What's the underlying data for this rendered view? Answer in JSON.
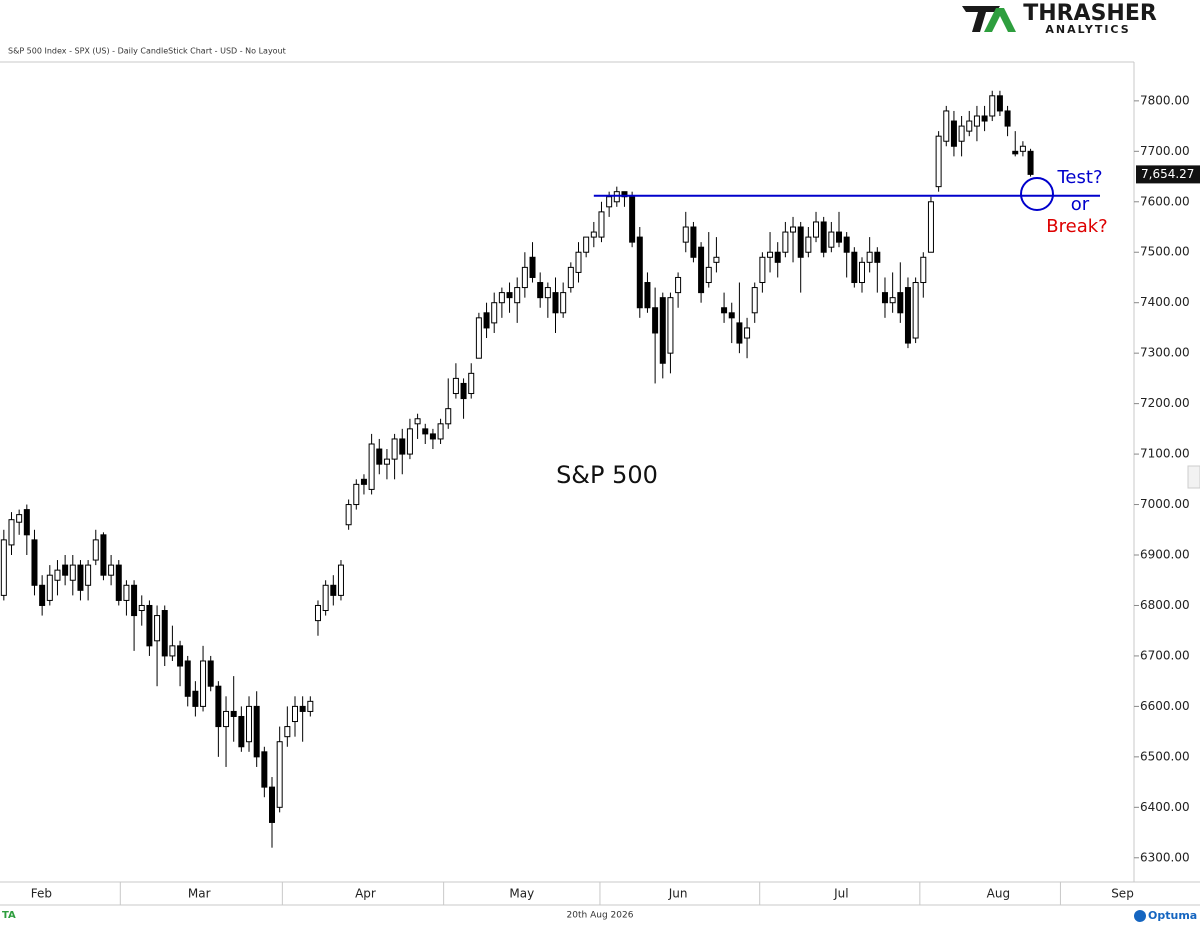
{
  "chart_data": {
    "type": "candlestick",
    "title": "S&P 500 Index - SPX (US) - Daily CandleStick Chart - USD - No Layout",
    "annotation": "S&P 500",
    "brand": "THRASHER",
    "brand_sub": "ANALYTICS",
    "footer_date": "20th Aug 2026",
    "footer_brand": "Optuma",
    "last_price": 7654.27,
    "last_price_label": "7,654.27",
    "level_line": {
      "value": 7612,
      "color": "#0000cc"
    },
    "question_1": "Test?",
    "question_or": "or",
    "question_2": "Break?",
    "ylim": [
      6252,
      7877
    ],
    "xlim": [
      -0.5,
      147.5
    ],
    "yticks": [
      {
        "value": 6300,
        "label": "6300.00"
      },
      {
        "value": 6400,
        "label": "6400.00"
      },
      {
        "value": 6500,
        "label": "6500.00"
      },
      {
        "value": 6600,
        "label": "6600.00"
      },
      {
        "value": 6700,
        "label": "6700.00"
      },
      {
        "value": 6800,
        "label": "6800.00"
      },
      {
        "value": 6900,
        "label": "6900.00"
      },
      {
        "value": 7000,
        "label": "7000.00"
      },
      {
        "value": 7100,
        "label": "7100.00"
      },
      {
        "value": 7200,
        "label": "7200.00"
      },
      {
        "value": 7300,
        "label": "7300.00"
      },
      {
        "value": 7400,
        "label": "7400.00"
      },
      {
        "value": 7500,
        "label": "7500.00"
      },
      {
        "value": 7600,
        "label": "7600.00"
      },
      {
        "value": 7700,
        "label": "7700.00"
      },
      {
        "value": 7800,
        "label": "7800.00"
      }
    ],
    "xticks": [
      {
        "value": 4.9,
        "label": "Feb"
      },
      {
        "value": 25.5,
        "label": "Mar"
      },
      {
        "value": 47.2,
        "label": "Apr"
      },
      {
        "value": 67.6,
        "label": "May"
      },
      {
        "value": 88,
        "label": "Jun"
      },
      {
        "value": 109.3,
        "label": "Jul"
      },
      {
        "value": 129.8,
        "label": "Aug"
      },
      {
        "value": 146,
        "label": "Sep"
      }
    ],
    "candles": [
      [
        6820,
        6950,
        6810,
        6930
      ],
      [
        6920,
        6985,
        6900,
        6970
      ],
      [
        6965,
        6990,
        6940,
        6980
      ],
      [
        6990,
        7000,
        6900,
        6940
      ],
      [
        6930,
        6950,
        6820,
        6840
      ],
      [
        6840,
        6860,
        6780,
        6800
      ],
      [
        6810,
        6880,
        6800,
        6860
      ],
      [
        6850,
        6890,
        6820,
        6870
      ],
      [
        6880,
        6900,
        6840,
        6860
      ],
      [
        6850,
        6900,
        6820,
        6880
      ],
      [
        6880,
        6890,
        6810,
        6830
      ],
      [
        6840,
        6890,
        6810,
        6880
      ],
      [
        6890,
        6950,
        6880,
        6930
      ],
      [
        6940,
        6945,
        6850,
        6860
      ],
      [
        6860,
        6900,
        6840,
        6880
      ],
      [
        6880,
        6890,
        6800,
        6810
      ],
      [
        6810,
        6850,
        6780,
        6840
      ],
      [
        6840,
        6850,
        6710,
        6780
      ],
      [
        6790,
        6820,
        6760,
        6800
      ],
      [
        6800,
        6810,
        6700,
        6720
      ],
      [
        6730,
        6800,
        6640,
        6780
      ],
      [
        6790,
        6800,
        6680,
        6700
      ],
      [
        6700,
        6760,
        6690,
        6720
      ],
      [
        6720,
        6730,
        6640,
        6680
      ],
      [
        6690,
        6700,
        6600,
        6620
      ],
      [
        6630,
        6650,
        6580,
        6600
      ],
      [
        6600,
        6720,
        6590,
        6690
      ],
      [
        6690,
        6700,
        6630,
        6640
      ],
      [
        6640,
        6650,
        6500,
        6560
      ],
      [
        6560,
        6620,
        6480,
        6590
      ],
      [
        6590,
        6660,
        6530,
        6580
      ],
      [
        6580,
        6600,
        6510,
        6520
      ],
      [
        6530,
        6620,
        6510,
        6600
      ],
      [
        6600,
        6630,
        6480,
        6500
      ],
      [
        6510,
        6520,
        6420,
        6440
      ],
      [
        6440,
        6460,
        6320,
        6370
      ],
      [
        6400,
        6560,
        6390,
        6530
      ],
      [
        6540,
        6600,
        6520,
        6560
      ],
      [
        6570,
        6620,
        6540,
        6600
      ],
      [
        6600,
        6620,
        6530,
        6590
      ],
      [
        6590,
        6620,
        6580,
        6610
      ],
      [
        6770,
        6810,
        6740,
        6800
      ],
      [
        6790,
        6850,
        6780,
        6840
      ],
      [
        6840,
        6860,
        6800,
        6820
      ],
      [
        6820,
        6890,
        6810,
        6880
      ],
      [
        6960,
        7010,
        6950,
        7000
      ],
      [
        7000,
        7050,
        6990,
        7040
      ],
      [
        7050,
        7060,
        7020,
        7040
      ],
      [
        7030,
        7140,
        7020,
        7120
      ],
      [
        7110,
        7130,
        7060,
        7080
      ],
      [
        7080,
        7110,
        7050,
        7090
      ],
      [
        7090,
        7140,
        7050,
        7130
      ],
      [
        7130,
        7150,
        7060,
        7100
      ],
      [
        7100,
        7170,
        7090,
        7150
      ],
      [
        7160,
        7180,
        7130,
        7170
      ],
      [
        7150,
        7160,
        7120,
        7140
      ],
      [
        7140,
        7150,
        7110,
        7130
      ],
      [
        7130,
        7170,
        7120,
        7160
      ],
      [
        7160,
        7250,
        7150,
        7190
      ],
      [
        7220,
        7280,
        7210,
        7250
      ],
      [
        7240,
        7250,
        7170,
        7210
      ],
      [
        7220,
        7280,
        7210,
        7260
      ],
      [
        7290,
        7380,
        7290,
        7370
      ],
      [
        7380,
        7400,
        7330,
        7350
      ],
      [
        7360,
        7420,
        7340,
        7400
      ],
      [
        7400,
        7430,
        7370,
        7420
      ],
      [
        7420,
        7440,
        7380,
        7410
      ],
      [
        7400,
        7450,
        7360,
        7430
      ],
      [
        7430,
        7500,
        7410,
        7470
      ],
      [
        7490,
        7520,
        7440,
        7450
      ],
      [
        7440,
        7460,
        7390,
        7410
      ],
      [
        7410,
        7440,
        7370,
        7430
      ],
      [
        7420,
        7450,
        7340,
        7380
      ],
      [
        7380,
        7440,
        7370,
        7420
      ],
      [
        7430,
        7480,
        7420,
        7470
      ],
      [
        7460,
        7520,
        7440,
        7500
      ],
      [
        7500,
        7530,
        7490,
        7530
      ],
      [
        7530,
        7560,
        7510,
        7540
      ],
      [
        7530,
        7600,
        7520,
        7580
      ],
      [
        7590,
        7620,
        7570,
        7610
      ],
      [
        7600,
        7630,
        7590,
        7620
      ],
      [
        7620,
        7620,
        7590,
        7610
      ],
      [
        7610,
        7620,
        7510,
        7520
      ],
      [
        7530,
        7550,
        7370,
        7390
      ],
      [
        7440,
        7460,
        7380,
        7390
      ],
      [
        7390,
        7430,
        7240,
        7340
      ],
      [
        7410,
        7420,
        7250,
        7280
      ],
      [
        7300,
        7420,
        7260,
        7410
      ],
      [
        7420,
        7460,
        7390,
        7450
      ],
      [
        7520,
        7580,
        7500,
        7550
      ],
      [
        7550,
        7560,
        7480,
        7490
      ],
      [
        7510,
        7520,
        7400,
        7420
      ],
      [
        7440,
        7540,
        7430,
        7470
      ],
      [
        7480,
        7530,
        7460,
        7490
      ],
      [
        7390,
        7420,
        7360,
        7380
      ],
      [
        7380,
        7400,
        7320,
        7370
      ],
      [
        7360,
        7440,
        7300,
        7320
      ],
      [
        7330,
        7370,
        7290,
        7350
      ],
      [
        7380,
        7440,
        7360,
        7430
      ],
      [
        7440,
        7500,
        7420,
        7490
      ],
      [
        7490,
        7540,
        7460,
        7500
      ],
      [
        7500,
        7520,
        7450,
        7480
      ],
      [
        7500,
        7560,
        7490,
        7540
      ],
      [
        7540,
        7570,
        7480,
        7550
      ],
      [
        7550,
        7560,
        7420,
        7490
      ],
      [
        7500,
        7550,
        7490,
        7530
      ],
      [
        7530,
        7580,
        7520,
        7560
      ],
      [
        7560,
        7570,
        7490,
        7500
      ],
      [
        7510,
        7560,
        7500,
        7540
      ],
      [
        7540,
        7580,
        7510,
        7520
      ],
      [
        7530,
        7540,
        7450,
        7500
      ],
      [
        7500,
        7510,
        7430,
        7440
      ],
      [
        7440,
        7490,
        7420,
        7480
      ],
      [
        7480,
        7530,
        7460,
        7500
      ],
      [
        7500,
        7510,
        7420,
        7480
      ],
      [
        7420,
        7450,
        7370,
        7400
      ],
      [
        7400,
        7460,
        7380,
        7410
      ],
      [
        7420,
        7480,
        7360,
        7380
      ],
      [
        7430,
        7450,
        7310,
        7320
      ],
      [
        7330,
        7450,
        7320,
        7440
      ],
      [
        7440,
        7500,
        7410,
        7490
      ],
      [
        7500,
        7610,
        7500,
        7600
      ],
      [
        7630,
        7740,
        7620,
        7730
      ],
      [
        7720,
        7790,
        7710,
        7780
      ],
      [
        7760,
        7780,
        7690,
        7710
      ],
      [
        7720,
        7770,
        7690,
        7750
      ],
      [
        7740,
        7780,
        7730,
        7760
      ],
      [
        7750,
        7790,
        7720,
        7770
      ],
      [
        7770,
        7790,
        7740,
        7760
      ],
      [
        7770,
        7820,
        7760,
        7810
      ],
      [
        7810,
        7820,
        7770,
        7780
      ],
      [
        7780,
        7790,
        7730,
        7750
      ],
      [
        7700,
        7740,
        7690,
        7695
      ],
      [
        7700,
        7720,
        7690,
        7710
      ],
      [
        7700,
        7705,
        7650,
        7654.27
      ]
    ]
  }
}
